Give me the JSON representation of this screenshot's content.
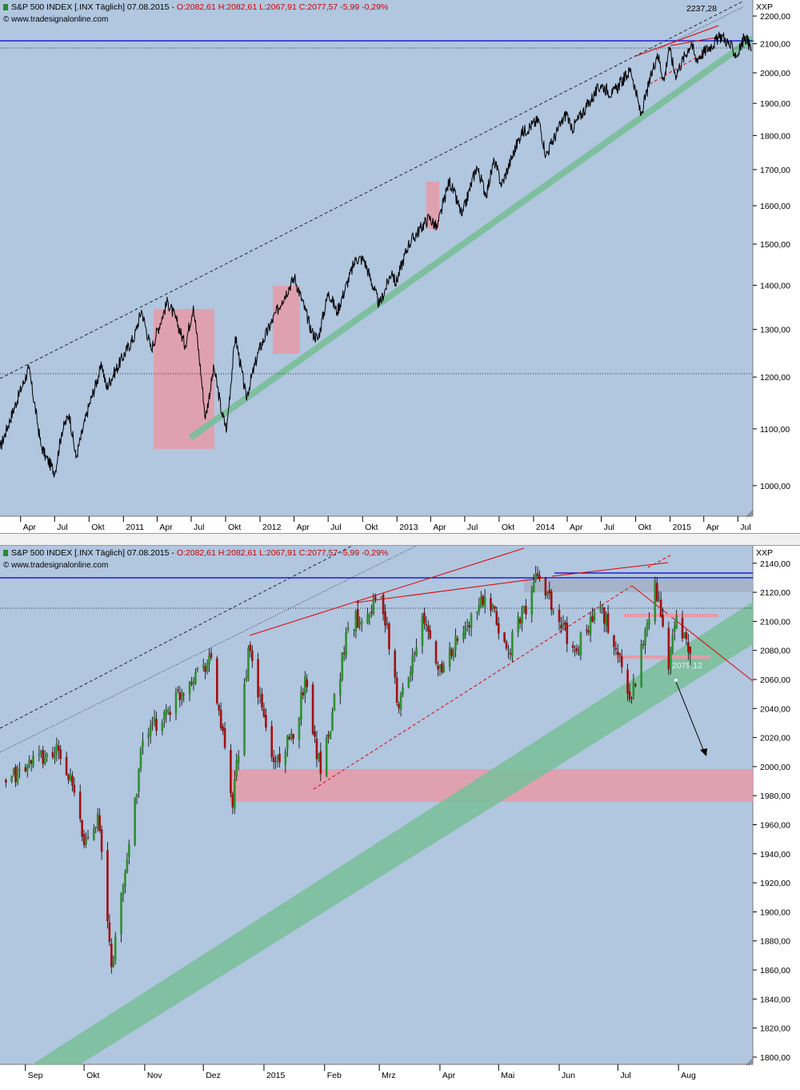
{
  "colors": {
    "background": "#b1c6df",
    "axis_bg": "#ffffff",
    "price_line": "#000000",
    "candle_up": "#2f8f2f",
    "candle_down": "#a01010",
    "trend_channel": "#7cbf9c",
    "resistance_blue": "#0000cc",
    "red_lines": "#e00000",
    "pink_zone": "#e79aa8"
  },
  "header": {
    "symbol": "S&P 500 INDEX [.INX  Täglich] 07.08.2015 - ",
    "ohlc": "O:2082,61 H:2082,61 L:2067,91 C:2077,57 -5,99 -0,29%",
    "source": "© www.tradesignalonline.com",
    "axis_name": "XXP"
  },
  "chart_data": [
    {
      "type": "line",
      "title": "S&P 500 INDEX [.INX  Täglich] 07.08.2015",
      "ylim": [
        950,
        2260
      ],
      "y_ticks": [
        "1000,00",
        "1100,00",
        "1200,00",
        "1300,00",
        "1400,00",
        "1500,00",
        "1600,00",
        "1700,00",
        "1800,00",
        "1900,00",
        "2000,00",
        "2100,00",
        "2200,00"
      ],
      "x_ticks": [
        "Apr",
        "Jul",
        "Okt",
        "2011",
        "Apr",
        "Jul",
        "Okt",
        "2012",
        "Apr",
        "Jul",
        "Okt",
        "2013",
        "Apr",
        "Jul",
        "Okt",
        "2014",
        "Apr",
        "Jul",
        "Okt",
        "2015",
        "Apr",
        "Jul"
      ],
      "x_tick_dates": [
        "2010-04",
        "2010-07",
        "2010-10",
        "2011-01",
        "2011-04",
        "2011-07",
        "2011-10",
        "2012-01",
        "2012-04",
        "2012-07",
        "2012-10",
        "2013-01",
        "2013-04",
        "2013-07",
        "2013-10",
        "2014-01",
        "2014-04",
        "2014-07",
        "2014-10",
        "2015-01",
        "2015-04",
        "2015-07"
      ],
      "series": [
        {
          "x": [
            "2010-02-05",
            "2010-04-23",
            "2010-05-25",
            "2010-06-07",
            "2010-07-02",
            "2010-07-20",
            "2010-08-09",
            "2010-08-27",
            "2010-09-30",
            "2010-11-05",
            "2010-11-16",
            "2011-01-31",
            "2011-02-18",
            "2011-03-16",
            "2011-04-29",
            "2011-05-23",
            "2011-06-15",
            "2011-07-07",
            "2011-08-08",
            "2011-08-31",
            "2011-09-21",
            "2011-10-04",
            "2011-10-27",
            "2011-11-25",
            "2011-12-30",
            "2012-02-29",
            "2012-04-02",
            "2012-05-18",
            "2012-06-04",
            "2012-07-02",
            "2012-07-25",
            "2012-09-14",
            "2012-10-05",
            "2012-11-15",
            "2012-12-19",
            "2012-12-28",
            "2013-01-31",
            "2013-03-28",
            "2013-04-18",
            "2013-05-21",
            "2013-06-24",
            "2013-08-02",
            "2013-08-27",
            "2013-09-18",
            "2013-10-08",
            "2013-11-29",
            "2014-01-15",
            "2014-02-03",
            "2014-03-31",
            "2014-04-11",
            "2014-06-30",
            "2014-07-31",
            "2014-09-18",
            "2014-10-15",
            "2014-11-28",
            "2014-12-16",
            "2014-12-29",
            "2015-01-15",
            "2015-02-27",
            "2015-03-10",
            "2015-05-20",
            "2015-06-29",
            "2015-07-20",
            "2015-08-07"
          ],
          "y": [
            1064,
            1217,
            1071,
            1050,
            1022,
            1094,
            1128,
            1047,
            1141,
            1225,
            1178,
            1286,
            1343,
            1256,
            1363,
            1318,
            1265,
            1353,
            1119,
            1219,
            1129,
            1099,
            1285,
            1158,
            1257,
            1365,
            1419,
            1295,
            1278,
            1385,
            1338,
            1465,
            1461,
            1353,
            1435,
            1402,
            1498,
            1569,
            1541,
            1669,
            1573,
            1709,
            1630,
            1725,
            1656,
            1807,
            1848,
            1741,
            1872,
            1815,
            1960,
            1930,
            2011,
            1862,
            2067,
            1972,
            2090,
            1992,
            2104,
            2044,
            2130,
            2058,
            2128,
            2077
          ]
        }
      ],
      "annotations": [
        "2237,28"
      ],
      "grid": false,
      "legend": "none"
    },
    {
      "type": "bar",
      "subtype": "candlestick",
      "title": "S&P 500 INDEX [.INX  Täglich] 07.08.2015",
      "ylim": [
        1795,
        2152
      ],
      "y_ticks": [
        "1800,00",
        "1820,00",
        "1840,00",
        "1860,00",
        "1880,00",
        "1900,00",
        "1920,00",
        "1940,00",
        "1960,00",
        "1980,00",
        "2000,00",
        "2020,00",
        "2040,00",
        "2060,00",
        "2080,00",
        "2100,00",
        "2120,00",
        "2140,00"
      ],
      "x_ticks": [
        "Sep",
        "Okt",
        "Nov",
        "Dez",
        "2015",
        "Feb",
        "Mrz",
        "Apr",
        "Mai",
        "Jun",
        "Jul",
        "Aug"
      ],
      "x_tick_dates": [
        "2014-09",
        "2014-10",
        "2014-11",
        "2014-12",
        "2015-01",
        "2015-02",
        "2015-03",
        "2015-04",
        "2015-05",
        "2015-06",
        "2015-07",
        "2015-08"
      ],
      "series": [
        {
          "name": "close",
          "x": [
            "2014-08-22",
            "2014-09-04",
            "2014-09-18",
            "2014-09-26",
            "2014-10-01",
            "2014-10-08",
            "2014-10-15",
            "2014-10-22",
            "2014-10-31",
            "2014-11-13",
            "2014-11-28",
            "2014-12-05",
            "2014-12-16",
            "2014-12-24",
            "2015-01-06",
            "2015-01-16",
            "2015-01-22",
            "2015-01-30",
            "2015-02-13",
            "2015-03-02",
            "2015-03-11",
            "2015-03-23",
            "2015-03-31",
            "2015-04-13",
            "2015-04-24",
            "2015-05-06",
            "2015-05-21",
            "2015-05-29",
            "2015-06-09",
            "2015-06-22",
            "2015-07-01",
            "2015-07-08",
            "2015-07-20",
            "2015-07-27",
            "2015-07-31",
            "2015-08-07"
          ],
          "y": [
            1989,
            2002,
            2011,
            1982,
            1946,
            1968,
            1862,
            1927,
            2018,
            2039,
            2068,
            2075,
            1972,
            2082,
            2003,
            2019,
            2062,
            1995,
            2096,
            2117,
            2040,
            2104,
            2067,
            2092,
            2117,
            2080,
            2131,
            2107,
            2080,
            2109,
            2077,
            2047,
            2128,
            2067,
            2104,
            2077
          ]
        }
      ],
      "annotations": [
        "2075,12"
      ],
      "grid": false,
      "legend": "none"
    }
  ]
}
